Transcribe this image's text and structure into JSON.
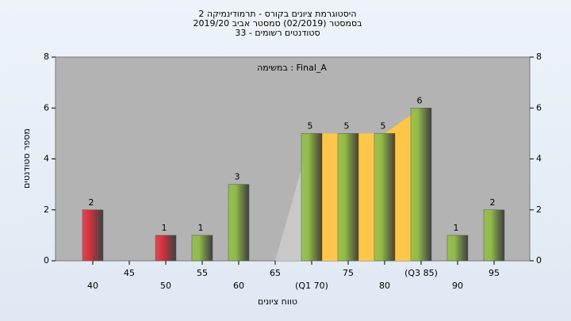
{
  "chart_data": {
    "type": "bar",
    "title_lines": [
      "היסטוגרמת ציונים בקורס - תרמודינמיקה 2",
      "בסמסטר (02/2019) סמסטר אביב 2019/20",
      "סטודנטים רשומים - 33"
    ],
    "annotation": "במשימה : Final_A",
    "x_label": "טווח ציונים",
    "y_label": "מספר סטודנטים",
    "categories": [
      "40",
      "45",
      "50",
      "55",
      "60",
      "65",
      "(Q1 70)",
      "75",
      "80",
      "(Q3 85)",
      "90",
      "95"
    ],
    "values": [
      2,
      null,
      1,
      1,
      3,
      null,
      5,
      5,
      5,
      6,
      1,
      2
    ],
    "bar_colors": [
      "#d8303a",
      "#8fbc45",
      "#d8303a",
      "#8fbc45",
      "#8fbc45",
      "#8fbc45",
      "#8fbc45",
      "#8fbc45",
      "#8fbc45",
      "#8fbc45",
      "#8fbc45",
      "#8fbc45"
    ],
    "highlight_color": "#ffc64a",
    "ylim": [
      0,
      8
    ],
    "yticks": [
      0,
      2,
      4,
      6,
      8
    ],
    "y2lim": [
      0,
      8
    ],
    "y2ticks": [
      0,
      2,
      4,
      6,
      8
    ],
    "grid": false
  }
}
